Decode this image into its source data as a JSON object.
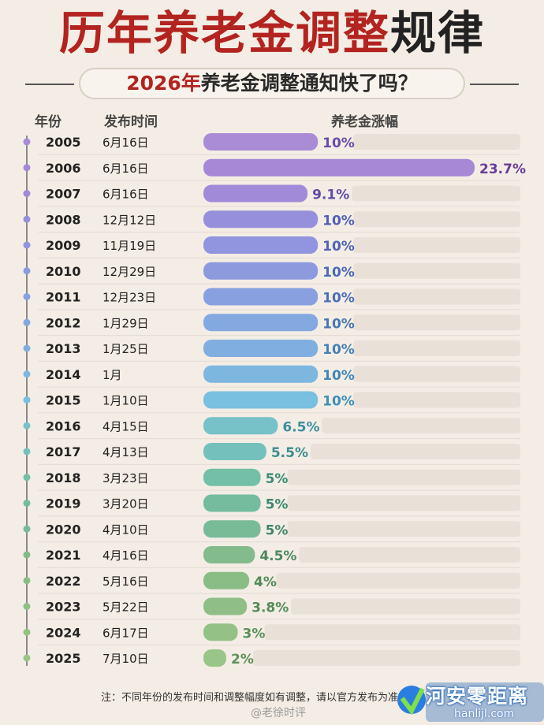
{
  "title_part1": "历年养老金调整",
  "title_part2": "规律",
  "subtitle_year": "2026年",
  "subtitle_rest": "养老金调整通知快了吗？",
  "headers": {
    "year": "年份",
    "date": "发布时间",
    "increase": "养老金涨幅"
  },
  "footnote": "注：不同年份的发布时间和调整幅度如有调整，请以官方发布为准",
  "watermark": "@老徐时评",
  "logo_text": "河安零距离",
  "logo_sub": "hanlijl.com",
  "colors": {
    "title_red": "#b3231f",
    "track": "#e9e1d8"
  },
  "chart_data": {
    "type": "bar",
    "orientation": "horizontal",
    "categories": [
      "2005",
      "2006",
      "2007",
      "2008",
      "2009",
      "2010",
      "2011",
      "2012",
      "2013",
      "2014",
      "2015",
      "2016",
      "2017",
      "2018",
      "2019",
      "2020",
      "2021",
      "2022",
      "2023",
      "2024",
      "2025"
    ],
    "dates": [
      "6月16日",
      "6月16日",
      "6月16日",
      "12月12日",
      "11月19日",
      "12月29日",
      "12月23日",
      "1月29日",
      "1月25日",
      "1月",
      "1月10日",
      "4月15日",
      "4月13日",
      "3月23日",
      "3月20日",
      "4月10日",
      "4月16日",
      "5月16日",
      "5月22日",
      "6月17日",
      "7月10日"
    ],
    "values": [
      10,
      23.7,
      9.1,
      10,
      10,
      10,
      10,
      10,
      10,
      10,
      10,
      6.5,
      5.5,
      5,
      5,
      5,
      4.5,
      4,
      3.8,
      3,
      2
    ],
    "labels": [
      "10%",
      "23.7%",
      "9.1%",
      "10%",
      "10%",
      "10%",
      "10%",
      "10%",
      "10%",
      "10%",
      "10%",
      "6.5%",
      "5.5%",
      "5%",
      "5%",
      "5%",
      "4.5%",
      "4%",
      "3.8%",
      "3%",
      "2%"
    ],
    "xlim": [
      0,
      23.7
    ],
    "colors": [
      "#a98bd6",
      "#a688d6",
      "#9f8bd8",
      "#9690dc",
      "#9194de",
      "#8d9ade",
      "#88a0df",
      "#84a8e0",
      "#81aee0",
      "#7db7e0",
      "#79bfe0",
      "#76c2c8",
      "#74c0bd",
      "#73bfa7",
      "#75bc9f",
      "#79ba97",
      "#83bb8c",
      "#8abd86",
      "#8fbf86",
      "#94c286",
      "#9ac588"
    ],
    "label_colors": [
      "#6b4ba8",
      "#6b3b98",
      "#5e4aa8",
      "#4f5fb6",
      "#4f63b6",
      "#4c68b6",
      "#4a6fb4",
      "#4777b2",
      "#4580b4",
      "#4385b6",
      "#3f8fb8",
      "#3b8f9e",
      "#3a8d90",
      "#3a8a78",
      "#3b8870",
      "#3e8668",
      "#4a8860",
      "#4f8a58",
      "#548c58",
      "#5a8e58",
      "#5f9058"
    ]
  }
}
